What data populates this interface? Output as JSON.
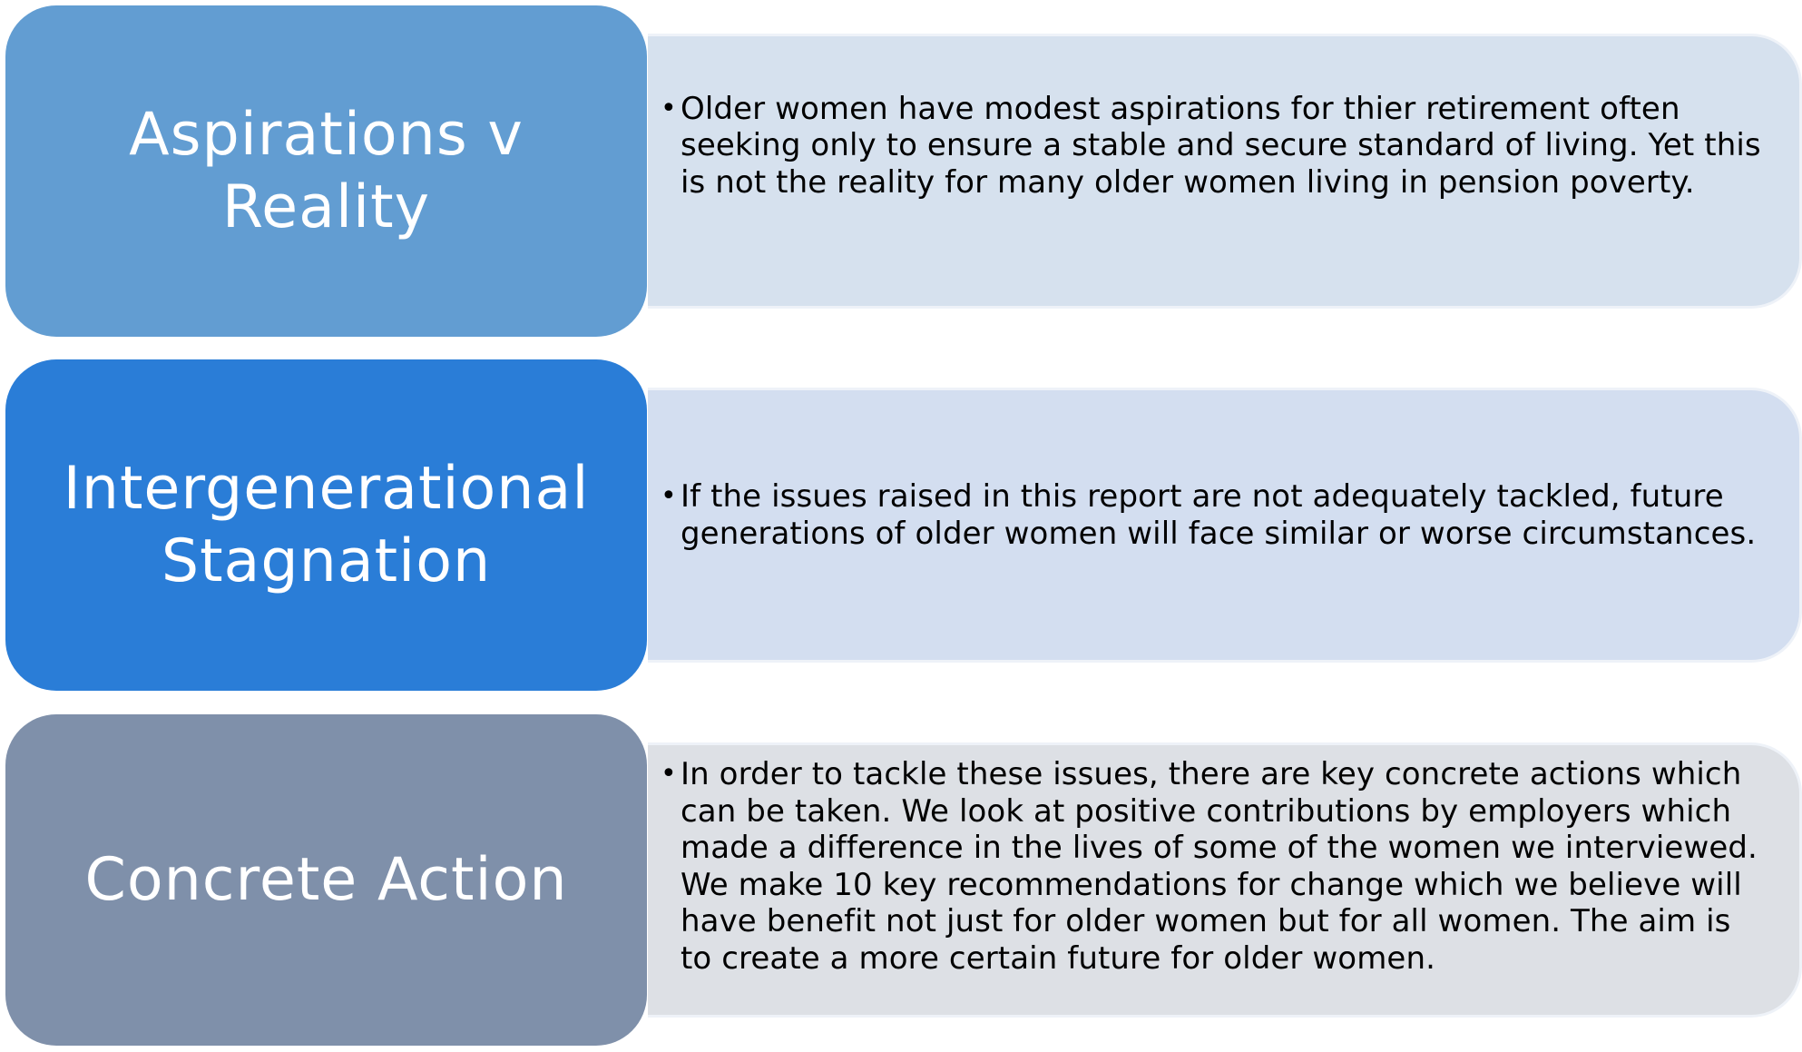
{
  "rows": [
    {
      "label": "Aspirations v Reality",
      "text": "Older women have modest aspirations for thier retirement often seeking only to ensure a stable and secure standard of living. Yet this is not the reality for many older women living in pension poverty."
    },
    {
      "label": "Intergenerational Stagnation",
      "text": "If the issues raised in this report are not adequately tackled, future generations of older women will face similar or worse circumstances."
    },
    {
      "label": "Concrete Action",
      "text": "In order to tackle these issues, there are key concrete actions which can be taken. We look at positive contributions by employers which made a difference in the lives of some of the women we interviewed. We make 10 key recommendations for change which we believe will have benefit not just for older women but for all women. The aim is to create a more certain future for older women."
    }
  ],
  "bullet_symbol": "•",
  "colors": {
    "label_1": "#629dd2",
    "label_2": "#2a7dd7",
    "label_3": "#7f90aa",
    "desc_1": "#d6e1ee",
    "desc_2": "#d3def0",
    "desc_3": "#dde0e5"
  }
}
